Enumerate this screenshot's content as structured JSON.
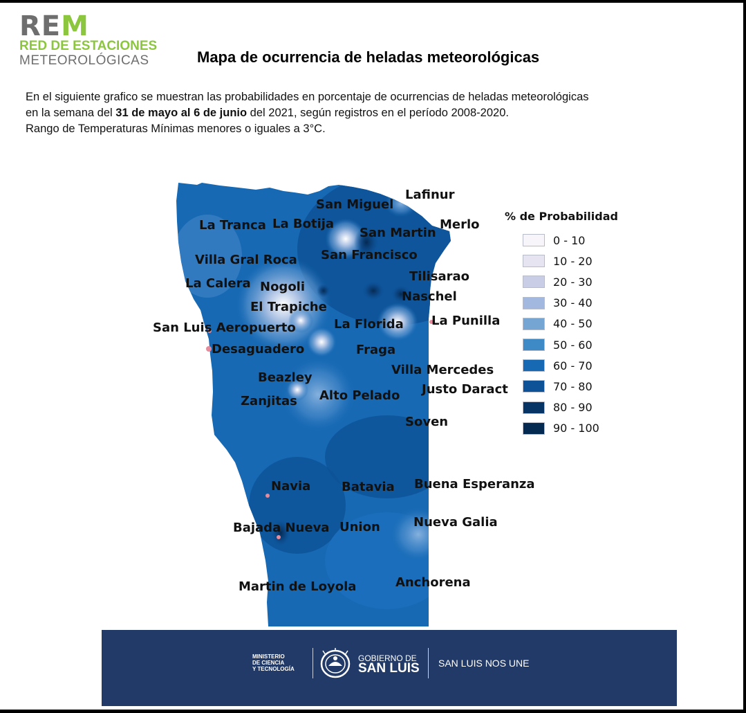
{
  "logo": {
    "rem_a": "RE",
    "rem_b": "M",
    "line1": "RED DE ESTACIONES",
    "line2": "METEOROLÓGICAS"
  },
  "title": "Mapa de ocurrencia de heladas meteorológicas",
  "description": {
    "line1": "En el siguiente grafico se muestran las probabilidades en porcentaje de ocurrencias de heladas meteorológicas",
    "line2_pre": "en la semana del ",
    "line2_bold": "31 de mayo al 6 de junio",
    "line2_post": " del 2021, según registros en el período 2008-2020.",
    "line3": "Rango de Temperaturas Mínimas menores o iguales a 3°C."
  },
  "places": {
    "lafinur": "Lafinur",
    "san_miguel": "San Miguel",
    "merlo": "Merlo",
    "la_tranca": "La Tranca",
    "la_botija": "La Botija",
    "san_martin": "San Martin",
    "san_francisco": "San Francisco",
    "villa_gral_roca": "Villa Gral Roca",
    "tilisarao": "Tilisarao",
    "la_calera": "La Calera",
    "nogoli": "Nogoli",
    "naschel": "Naschel",
    "el_trapiche": "El Trapiche",
    "la_punilla": "La Punilla",
    "la_florida": "La Florida",
    "san_luis_aeropuerto": "San Luis Aeropuerto",
    "desaguadero": "Desaguadero",
    "fraga": "Fraga",
    "villa_mercedes": "Villa Mercedes",
    "beazley": "Beazley",
    "justo_daract": "Justo Daract",
    "alto_pelado": "Alto Pelado",
    "zanjitas": "Zanjitas",
    "soven": "Soven",
    "navia": "Navia",
    "batavia": "Batavia",
    "buena_esperanza": "Buena Esperanza",
    "nueva_galia": "Nueva Galia",
    "bajada_nueva": "Bajada Nueva",
    "union": "Union",
    "anchorena": "Anchorena",
    "martin_de_loyola": "Martin de Loyola"
  },
  "legend": {
    "title": "% de Probabilidad",
    "items": [
      {
        "label": "0 - 10",
        "color": "#f7f4fa"
      },
      {
        "label": "10 - 20",
        "color": "#e6e4f1"
      },
      {
        "label": "20 - 30",
        "color": "#cacde6"
      },
      {
        "label": "30 - 40",
        "color": "#a3b8de"
      },
      {
        "label": "40 - 50",
        "color": "#74a5d3"
      },
      {
        "label": "50 - 60",
        "color": "#3d8ac6"
      },
      {
        "label": "60 - 70",
        "color": "#1769b4"
      },
      {
        "label": "70 - 80",
        "color": "#0d5296"
      },
      {
        "label": "80 - 90",
        "color": "#063464"
      },
      {
        "label": "90 - 100",
        "color": "#052a52"
      }
    ]
  },
  "footer": {
    "ministry": [
      "MINISTERIO",
      "DE CIENCIA",
      "Y TECNOLOGÍA"
    ],
    "gov_line1": "GOBIERNO DE",
    "gov_line2": "SAN LUIS",
    "slogan": "SAN LUIS NOS UNE",
    "bg_color": "#223a68"
  }
}
